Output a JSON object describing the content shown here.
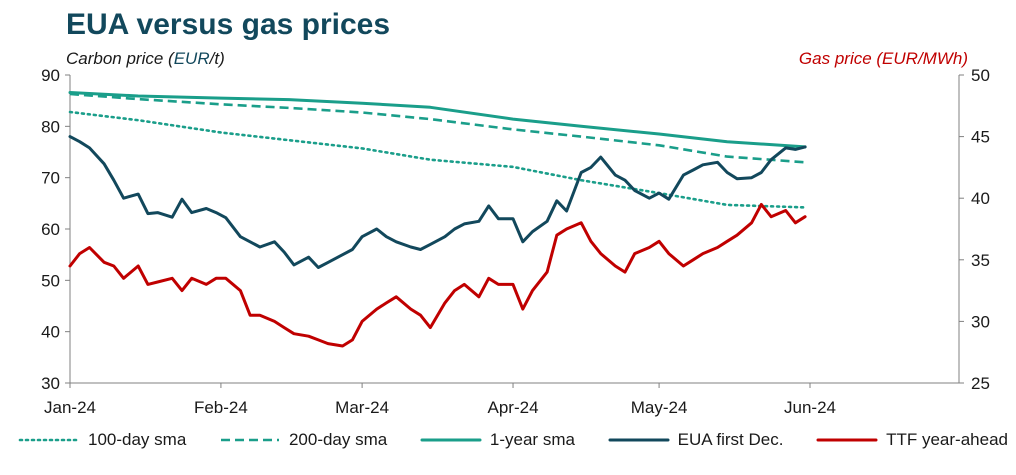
{
  "chart_data": {
    "type": "line",
    "title": "EUA versus gas prices",
    "ylabel_left_prefix": "Carbon price (",
    "ylabel_left_unit": "EUR",
    "ylabel_left_suffix": "/t)",
    "ylabel_right": "Gas price (EUR/MWh)",
    "x_ticks": [
      "Jan-24",
      "Feb-24",
      "Mar-24",
      "Apr-24",
      "May-24",
      "Jun-24"
    ],
    "x_range": [
      "2024-01-01",
      "2024-06-01"
    ],
    "y_left_ticks": [
      30,
      40,
      50,
      60,
      70,
      80,
      90
    ],
    "y_right_ticks": [
      25,
      30,
      35,
      40,
      45,
      50
    ],
    "ylim_left": [
      30,
      90
    ],
    "ylim_right": [
      25,
      50
    ],
    "grid": false,
    "legend_position": "bottom",
    "series": [
      {
        "name": "100-day sma",
        "axis": "left",
        "color": "#1a9e8a",
        "style": "dotted",
        "x": [
          "2024-01-01",
          "2024-01-15",
          "2024-02-01",
          "2024-02-15",
          "2024-03-01",
          "2024-03-15",
          "2024-04-01",
          "2024-04-15",
          "2024-05-01",
          "2024-05-15",
          "2024-05-31"
        ],
        "y": [
          82.8,
          81.2,
          78.8,
          77.3,
          75.7,
          73.5,
          72.1,
          69.5,
          67.0,
          64.7,
          64.2
        ]
      },
      {
        "name": "200-day sma",
        "axis": "left",
        "color": "#1a9e8a",
        "style": "dashed",
        "x": [
          "2024-01-01",
          "2024-01-15",
          "2024-02-01",
          "2024-02-15",
          "2024-03-01",
          "2024-03-15",
          "2024-04-01",
          "2024-04-15",
          "2024-05-01",
          "2024-05-15",
          "2024-05-31"
        ],
        "y": [
          86.3,
          85.3,
          84.3,
          83.6,
          82.7,
          81.4,
          79.4,
          78.0,
          76.3,
          74.1,
          73.0
        ]
      },
      {
        "name": "1-year sma",
        "axis": "left",
        "color": "#1a9e8a",
        "style": "solid",
        "x": [
          "2024-01-01",
          "2024-01-15",
          "2024-02-01",
          "2024-02-15",
          "2024-03-01",
          "2024-03-15",
          "2024-04-01",
          "2024-04-15",
          "2024-05-01",
          "2024-05-15",
          "2024-05-31"
        ],
        "y": [
          86.6,
          85.9,
          85.5,
          85.2,
          84.5,
          83.7,
          81.4,
          80.0,
          78.5,
          77.0,
          76.0
        ]
      },
      {
        "name": "EUA first Dec.",
        "axis": "left",
        "color": "#12485c",
        "style": "solid",
        "x": [
          "2024-01-01",
          "2024-01-03",
          "2024-01-05",
          "2024-01-08",
          "2024-01-10",
          "2024-01-12",
          "2024-01-15",
          "2024-01-17",
          "2024-01-19",
          "2024-01-22",
          "2024-01-24",
          "2024-01-26",
          "2024-01-29",
          "2024-01-31",
          "2024-02-02",
          "2024-02-05",
          "2024-02-07",
          "2024-02-09",
          "2024-02-12",
          "2024-02-14",
          "2024-02-16",
          "2024-02-19",
          "2024-02-21",
          "2024-02-23",
          "2024-02-26",
          "2024-02-28",
          "2024-03-01",
          "2024-03-04",
          "2024-03-06",
          "2024-03-08",
          "2024-03-11",
          "2024-03-13",
          "2024-03-15",
          "2024-03-18",
          "2024-03-20",
          "2024-03-22",
          "2024-03-25",
          "2024-03-27",
          "2024-03-29",
          "2024-04-01",
          "2024-04-03",
          "2024-04-05",
          "2024-04-08",
          "2024-04-10",
          "2024-04-12",
          "2024-04-15",
          "2024-04-17",
          "2024-04-19",
          "2024-04-22",
          "2024-04-24",
          "2024-04-26",
          "2024-04-29",
          "2024-05-01",
          "2024-05-03",
          "2024-05-06",
          "2024-05-08",
          "2024-05-10",
          "2024-05-13",
          "2024-05-15",
          "2024-05-17",
          "2024-05-20",
          "2024-05-22",
          "2024-05-24",
          "2024-05-27",
          "2024-05-29",
          "2024-05-31"
        ],
        "y": [
          78.0,
          77.0,
          75.8,
          72.7,
          69.5,
          66.0,
          66.8,
          63.0,
          63.2,
          62.3,
          65.8,
          63.2,
          64.0,
          63.2,
          62.2,
          58.5,
          57.5,
          56.5,
          57.5,
          55.5,
          53.0,
          54.5,
          52.5,
          53.5,
          55.0,
          56.0,
          58.5,
          60.0,
          58.5,
          57.5,
          56.5,
          56.0,
          57.0,
          58.5,
          60.0,
          61.0,
          61.5,
          64.5,
          62.0,
          62.0,
          57.5,
          59.5,
          61.5,
          65.5,
          63.5,
          71.0,
          72.0,
          74.0,
          70.5,
          69.5,
          67.5,
          66.0,
          67.0,
          65.8,
          70.5,
          71.5,
          72.5,
          73.0,
          71.0,
          69.8,
          70.0,
          71.0,
          73.5,
          75.8,
          75.5,
          76.0
        ]
      },
      {
        "name": "TTF year-ahead",
        "axis": "right",
        "color": "#c00000",
        "style": "solid",
        "x": [
          "2024-01-01",
          "2024-01-03",
          "2024-01-05",
          "2024-01-08",
          "2024-01-10",
          "2024-01-12",
          "2024-01-15",
          "2024-01-17",
          "2024-01-19",
          "2024-01-22",
          "2024-01-24",
          "2024-01-26",
          "2024-01-29",
          "2024-01-31",
          "2024-02-02",
          "2024-02-05",
          "2024-02-07",
          "2024-02-09",
          "2024-02-12",
          "2024-02-14",
          "2024-02-16",
          "2024-02-19",
          "2024-02-21",
          "2024-02-23",
          "2024-02-26",
          "2024-02-28",
          "2024-03-01",
          "2024-03-04",
          "2024-03-06",
          "2024-03-08",
          "2024-03-11",
          "2024-03-13",
          "2024-03-15",
          "2024-03-18",
          "2024-03-20",
          "2024-03-22",
          "2024-03-25",
          "2024-03-27",
          "2024-03-29",
          "2024-04-01",
          "2024-04-03",
          "2024-04-05",
          "2024-04-08",
          "2024-04-10",
          "2024-04-12",
          "2024-04-15",
          "2024-04-17",
          "2024-04-19",
          "2024-04-22",
          "2024-04-24",
          "2024-04-26",
          "2024-04-29",
          "2024-05-01",
          "2024-05-03",
          "2024-05-06",
          "2024-05-08",
          "2024-05-10",
          "2024-05-13",
          "2024-05-15",
          "2024-05-17",
          "2024-05-20",
          "2024-05-22",
          "2024-05-24",
          "2024-05-27",
          "2024-05-29",
          "2024-05-31"
        ],
        "y": [
          34.5,
          35.5,
          36.0,
          34.8,
          34.5,
          33.5,
          34.5,
          33.0,
          33.2,
          33.5,
          32.5,
          33.5,
          33.0,
          33.5,
          33.5,
          32.5,
          30.5,
          30.5,
          30.0,
          29.5,
          29.0,
          28.8,
          28.5,
          28.2,
          28.0,
          28.5,
          30.0,
          31.0,
          31.5,
          32.0,
          31.0,
          30.5,
          29.5,
          31.5,
          32.5,
          33.0,
          32.0,
          33.5,
          33.0,
          33.0,
          31.0,
          32.5,
          34.0,
          37.0,
          37.5,
          38.0,
          36.5,
          35.5,
          34.5,
          34.0,
          35.5,
          36.0,
          36.5,
          35.5,
          34.5,
          35.0,
          35.5,
          36.0,
          36.5,
          37.0,
          38.0,
          39.5,
          38.5,
          39.0,
          38.0,
          38.5
        ]
      }
    ]
  }
}
